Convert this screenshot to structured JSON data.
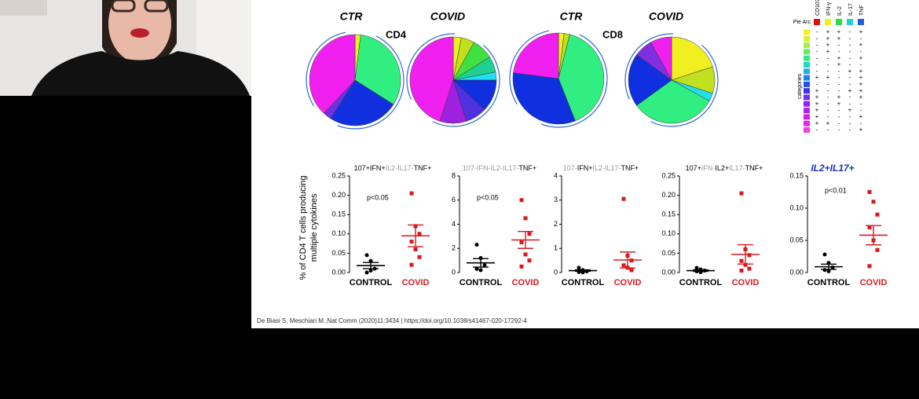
{
  "chart_data": [
    {
      "type": "pie",
      "title": "CTR",
      "subtitle": "CD4",
      "values": [
        2,
        32,
        25,
        3,
        38
      ],
      "colors": [
        "#f0f020",
        "#30ee80",
        "#1030e0",
        "#7030e0",
        "#f020f0"
      ]
    },
    {
      "type": "pie",
      "title": "COVID",
      "values": [
        3,
        5,
        8,
        6,
        3,
        12,
        8,
        10,
        45
      ],
      "colors": [
        "#f0f020",
        "#c0e020",
        "#40e040",
        "#20d090",
        "#20e0f0",
        "#1030e0",
        "#5030e0",
        "#a020e0",
        "#f020f0"
      ]
    },
    {
      "type": "pie",
      "title": "CTR",
      "subtitle": "CD8",
      "values": [
        2,
        2,
        40,
        33,
        23
      ],
      "colors": [
        "#f0f020",
        "#c0e020",
        "#30ee80",
        "#1030e0",
        "#f020f0"
      ]
    },
    {
      "type": "pie",
      "title": "COVID",
      "values": [
        20,
        10,
        3,
        32,
        20,
        7,
        8
      ],
      "colors": [
        "#f0f020",
        "#c0e020",
        "#20e0f0",
        "#30ee80",
        "#1030e0",
        "#8030e0",
        "#f020f0"
      ]
    },
    {
      "type": "dotplot",
      "title": [
        "107+IFN+",
        "IL2-IL17-",
        "TNF+"
      ],
      "title_colors": [
        "#000",
        "#999",
        "#000"
      ],
      "ylabel": [
        "% of CD4 T cells producing",
        "multiple cytokines"
      ],
      "annotation": "p<0.05",
      "categories": [
        "CONTROL",
        "COVID"
      ],
      "groups": [
        {
          "values": [
            0.045,
            0.03,
            0.01,
            0.0,
            0.005
          ],
          "mean": 0.018,
          "sem": 0.008,
          "color": "#000000"
        },
        {
          "values": [
            0.205,
            0.12,
            0.1,
            0.08,
            0.06,
            0.04,
            0.02
          ],
          "mean": 0.095,
          "sem": 0.028,
          "color": "#d71920"
        }
      ],
      "ylim": [
        0,
        0.25
      ],
      "yticks": [
        {
          "value": 0,
          "label": "0.00"
        },
        {
          "value": 0.05,
          "label": "0.05"
        },
        {
          "value": 0.1,
          "label": "0.10"
        },
        {
          "value": 0.15,
          "label": "0.15"
        },
        {
          "value": 0.2,
          "label": "0.20"
        },
        {
          "value": 0.25,
          "label": "0.25"
        }
      ]
    },
    {
      "type": "dotplot",
      "title": [
        "107-IFN-IL2-IL17-",
        "TNF+"
      ],
      "title_colors": [
        "#999",
        "#000"
      ],
      "annotation": "p<0.05",
      "categories": [
        "CONTROL",
        "COVID"
      ],
      "groups": [
        {
          "values": [
            2.3,
            1.2,
            0.6,
            0.3,
            0.2
          ],
          "mean": 0.8,
          "sem": 0.35,
          "color": "#000000"
        },
        {
          "values": [
            6,
            4.5,
            3.2,
            2.5,
            1.5,
            1,
            0.5
          ],
          "mean": 2.7,
          "sem": 0.7,
          "color": "#d71920"
        }
      ],
      "ylim": [
        0,
        8
      ],
      "yticks": [
        0,
        2,
        4,
        6,
        8
      ]
    },
    {
      "type": "dotplot",
      "title": [
        "107-",
        "IFN+",
        "IL2-IL17-",
        "TNF+"
      ],
      "title_colors": [
        "#999",
        "#000",
        "#999",
        "#000"
      ],
      "categories": [
        "CONTROL",
        "COVID"
      ],
      "groups": [
        {
          "values": [
            0.2,
            0.1,
            0.05,
            0.02,
            0.01
          ],
          "mean": 0.08,
          "sem": 0.03,
          "color": "#000000"
        },
        {
          "values": [
            3.05,
            0.7,
            0.5,
            0.3,
            0.2,
            0.1
          ],
          "mean": 0.52,
          "sem": 0.33,
          "color": "#d71920"
        }
      ],
      "ylim": [
        0,
        4
      ],
      "yticks": [
        0,
        1,
        2,
        3,
        4
      ]
    },
    {
      "type": "dotplot",
      "title": [
        "107+",
        "IFN-",
        "IL2+",
        "IL17-",
        "TNF+"
      ],
      "title_colors": [
        "#000",
        "#999",
        "#000",
        "#999",
        "#000"
      ],
      "categories": [
        "CONTROL",
        "COVID"
      ],
      "groups": [
        {
          "values": [
            0.012,
            0.008,
            0.005,
            0.003,
            0.001
          ],
          "mean": 0.005,
          "sem": 0.002,
          "color": "#000000"
        },
        {
          "values": [
            0.205,
            0.06,
            0.045,
            0.03,
            0.02,
            0.01,
            0.005
          ],
          "mean": 0.047,
          "sem": 0.025,
          "color": "#d71920"
        }
      ],
      "ylim": [
        0,
        0.25
      ],
      "yticks": [
        {
          "value": 0,
          "label": "0.00"
        },
        {
          "value": 0.05,
          "label": "0.05"
        },
        {
          "value": 0.1,
          "label": "0.10"
        },
        {
          "value": 0.15,
          "label": "0.15"
        },
        {
          "value": 0.2,
          "label": "0.20"
        },
        {
          "value": 0.25,
          "label": "0.25"
        }
      ]
    },
    {
      "type": "dotplot",
      "title": [
        "IL2+IL17+"
      ],
      "title_colors": [
        "#1a2fc0"
      ],
      "title_style": "bold-italic",
      "annotation": "p<0.01",
      "categories": [
        "CONTROL",
        "COVID"
      ],
      "groups": [
        {
          "values": [
            0.028,
            0.015,
            0.008,
            0.004,
            0.002
          ],
          "mean": 0.009,
          "sem": 0.004,
          "color": "#000000"
        },
        {
          "values": [
            0.125,
            0.11,
            0.09,
            0.07,
            0.05,
            0.035,
            0.01
          ],
          "mean": 0.058,
          "sem": 0.015,
          "color": "#d71920"
        }
      ],
      "ylim": [
        0,
        0.15
      ],
      "yticks": [
        {
          "value": 0,
          "label": "0.00"
        },
        {
          "value": 0.05,
          "label": "0.05"
        },
        {
          "value": 0.1,
          "label": "0.10"
        },
        {
          "value": 0.15,
          "label": "0.15"
        }
      ]
    }
  ],
  "legend": {
    "pie_arc_label": "Pie Arc",
    "categories_label": "categories",
    "markers": [
      {
        "name": "CD107",
        "color": "#e01010"
      },
      {
        "name": "IFN-γ",
        "color": "#f0f020"
      },
      {
        "name": "IL-2",
        "color": "#30dd40"
      },
      {
        "name": "IL-17",
        "color": "#20d0d0"
      },
      {
        "name": "TNF",
        "color": "#2060e0"
      }
    ],
    "rows": [
      {
        "color": "#f4f020",
        "signs": [
          "-",
          "+",
          "+",
          "-",
          "+"
        ]
      },
      {
        "color": "#d8f030",
        "signs": [
          "-",
          "+",
          "+",
          "-",
          "-"
        ]
      },
      {
        "color": "#a8f040",
        "signs": [
          "-",
          "+",
          "-",
          "-",
          "+"
        ]
      },
      {
        "color": "#60f060",
        "signs": [
          "-",
          "+",
          "-",
          "-",
          "-"
        ]
      },
      {
        "color": "#30e890",
        "signs": [
          "-",
          "-",
          "+",
          "-",
          "+"
        ]
      },
      {
        "color": "#20d8c0",
        "signs": [
          "-",
          "-",
          "+",
          "-",
          "-"
        ]
      },
      {
        "color": "#20b0e8",
        "signs": [
          "-",
          "-",
          "-",
          "+",
          "+"
        ]
      },
      {
        "color": "#2080f0",
        "signs": [
          "+",
          "+",
          "-",
          "-",
          "+"
        ]
      },
      {
        "color": "#2050f0",
        "signs": [
          "-",
          "-",
          "-",
          "-",
          "+"
        ]
      },
      {
        "color": "#4030f0",
        "signs": [
          "+",
          "-",
          "-",
          "+",
          "+"
        ]
      },
      {
        "color": "#7030f0",
        "signs": [
          "+",
          "-",
          "+",
          "-",
          "+"
        ]
      },
      {
        "color": "#9020f0",
        "signs": [
          "+",
          "-",
          "+",
          "-",
          "-"
        ]
      },
      {
        "color": "#b020f0",
        "signs": [
          "+",
          "-",
          "-",
          "+",
          "-"
        ]
      },
      {
        "color": "#d020f0",
        "signs": [
          "+",
          "-",
          "-",
          "-",
          "+"
        ]
      },
      {
        "color": "#e820f0",
        "signs": [
          "+",
          "+",
          "-",
          "-",
          "-"
        ]
      },
      {
        "color": "#f040e0",
        "signs": [
          "-",
          "-",
          "-",
          "-",
          "+"
        ]
      }
    ]
  },
  "citation": "De Biasi S, Meschiari M.,Nat Comm (2020)11:3434 | https://doi.org/10.1038/s41467-020-17292-4"
}
